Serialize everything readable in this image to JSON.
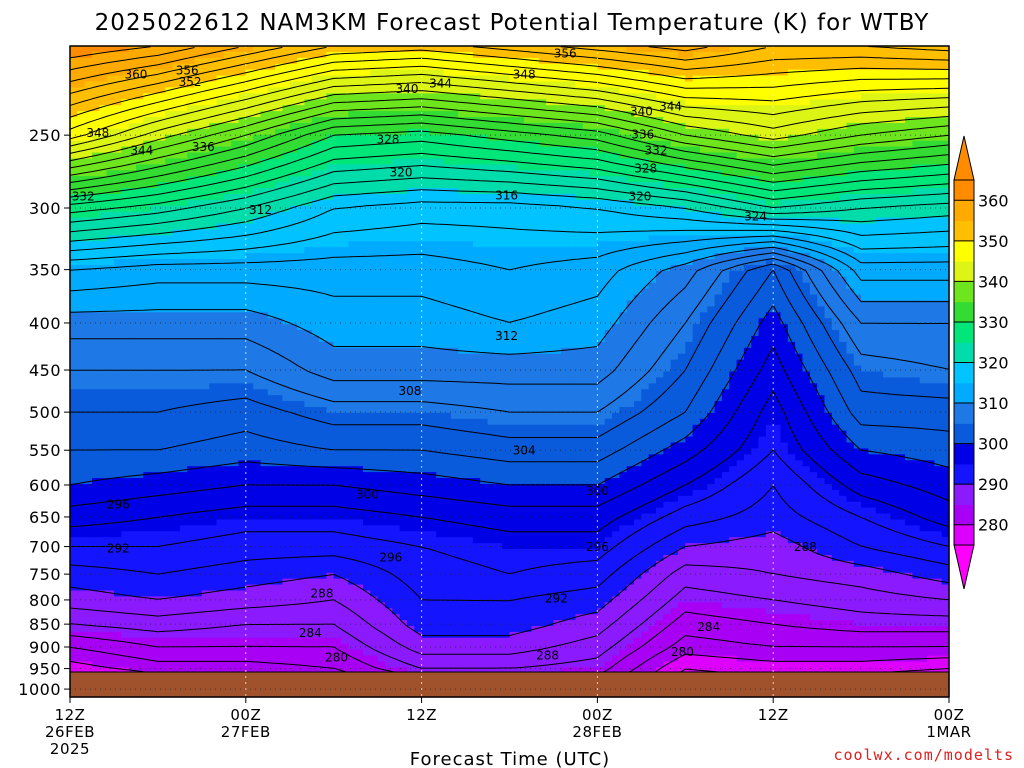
{
  "title": "2025022612 NAM3KM Forecast Potential Temperature (K) for WTBY",
  "credit": "coolwx.com/modelts",
  "chart_data": {
    "type": "contour",
    "title": "2025022612 NAM3KM Forecast Potential Temperature (K) for WTBY",
    "xlabel": "Forecast Time (UTC)",
    "ylabel": "",
    "x_range_hours": [
      0,
      60
    ],
    "y_range_hpa": [
      1000,
      200
    ],
    "y_ticks": [
      250,
      300,
      350,
      400,
      450,
      500,
      550,
      600,
      650,
      700,
      750,
      800,
      850,
      900,
      950,
      1000
    ],
    "x_ticks": [
      {
        "hour": 0,
        "l1": "12Z",
        "l2": "26FEB",
        "l3": "2025"
      },
      {
        "hour": 12,
        "l1": "00Z",
        "l2": "27FEB",
        "l3": ""
      },
      {
        "hour": 24,
        "l1": "12Z",
        "l2": "",
        "l3": ""
      },
      {
        "hour": 36,
        "l1": "00Z",
        "l2": "28FEB",
        "l3": ""
      },
      {
        "hour": 48,
        "l1": "12Z",
        "l2": "",
        "l3": ""
      },
      {
        "hour": 60,
        "l1": "00Z",
        "l2": "1MAR",
        "l3": ""
      }
    ],
    "colorbar": {
      "ticks": [
        280,
        290,
        300,
        310,
        320,
        330,
        340,
        350,
        360
      ],
      "bands": [
        {
          "lo": 270,
          "hi": 275,
          "color": "#ff00ff"
        },
        {
          "lo": 275,
          "hi": 280,
          "color": "#dd00ff"
        },
        {
          "lo": 280,
          "hi": 285,
          "color": "#a800f5"
        },
        {
          "lo": 285,
          "hi": 290,
          "color": "#8c1aff"
        },
        {
          "lo": 290,
          "hi": 295,
          "color": "#1414ff"
        },
        {
          "lo": 295,
          "hi": 300,
          "color": "#0000e6"
        },
        {
          "lo": 300,
          "hi": 305,
          "color": "#0a5adc"
        },
        {
          "lo": 305,
          "hi": 310,
          "color": "#1e78e6"
        },
        {
          "lo": 310,
          "hi": 315,
          "color": "#00aaff"
        },
        {
          "lo": 315,
          "hi": 320,
          "color": "#00c3ff"
        },
        {
          "lo": 320,
          "hi": 325,
          "color": "#00dcaa"
        },
        {
          "lo": 325,
          "hi": 330,
          "color": "#00e678"
        },
        {
          "lo": 330,
          "hi": 335,
          "color": "#32dc32"
        },
        {
          "lo": 335,
          "hi": 340,
          "color": "#6ee61e"
        },
        {
          "lo": 340,
          "hi": 345,
          "color": "#dcf514"
        },
        {
          "lo": 345,
          "hi": 350,
          "color": "#ffff00"
        },
        {
          "lo": 350,
          "hi": 355,
          "color": "#ffbe00"
        },
        {
          "lo": 355,
          "hi": 360,
          "color": "#ffaa00"
        },
        {
          "lo": 360,
          "hi": 370,
          "color": "#ff8c00"
        }
      ]
    },
    "ground_color": "#a0522d",
    "contour_interval_K": 2,
    "columns": [
      {
        "hour": 0,
        "theta": [
          [
            1000,
            274
          ],
          [
            950,
            279
          ],
          [
            900,
            282
          ],
          [
            850,
            286
          ],
          [
            800,
            289
          ],
          [
            750,
            291
          ],
          [
            700,
            294
          ],
          [
            650,
            297
          ],
          [
            600,
            300
          ],
          [
            550,
            302
          ],
          [
            500,
            304
          ],
          [
            450,
            306
          ],
          [
            400,
            309
          ],
          [
            350,
            314
          ],
          [
            300,
            327
          ],
          [
            250,
            347
          ],
          [
            200,
            362
          ]
        ]
      },
      {
        "hour": 6,
        "theta": [
          [
            1000,
            277
          ],
          [
            950,
            281
          ],
          [
            900,
            284
          ],
          [
            850,
            287
          ],
          [
            800,
            290
          ],
          [
            750,
            292
          ],
          [
            700,
            294
          ],
          [
            650,
            296
          ],
          [
            600,
            299
          ],
          [
            550,
            302
          ],
          [
            500,
            304
          ],
          [
            450,
            306
          ],
          [
            400,
            309
          ],
          [
            350,
            313
          ],
          [
            300,
            325
          ],
          [
            250,
            341
          ],
          [
            200,
            360
          ]
        ]
      },
      {
        "hour": 12,
        "theta": [
          [
            1000,
            277
          ],
          [
            950,
            281
          ],
          [
            900,
            284
          ],
          [
            850,
            286
          ],
          [
            800,
            289
          ],
          [
            750,
            291
          ],
          [
            700,
            293
          ],
          [
            650,
            295
          ],
          [
            600,
            298
          ],
          [
            550,
            301
          ],
          [
            500,
            303
          ],
          [
            450,
            306
          ],
          [
            400,
            309
          ],
          [
            350,
            313
          ],
          [
            300,
            322
          ],
          [
            250,
            336
          ],
          [
            200,
            356
          ]
        ]
      },
      {
        "hour": 18,
        "theta": [
          [
            1000,
            279
          ],
          [
            950,
            282
          ],
          [
            900,
            284
          ],
          [
            850,
            286
          ],
          [
            800,
            288
          ],
          [
            750,
            290
          ],
          [
            700,
            293
          ],
          [
            650,
            295
          ],
          [
            600,
            298
          ],
          [
            550,
            302
          ],
          [
            500,
            305
          ],
          [
            450,
            309
          ],
          [
            400,
            311
          ],
          [
            350,
            313
          ],
          [
            300,
            318
          ],
          [
            250,
            330
          ],
          [
            200,
            352
          ]
        ]
      },
      {
        "hour": 24,
        "theta": [
          [
            1000,
            281
          ],
          [
            950,
            286
          ],
          [
            900,
            289
          ],
          [
            850,
            291
          ],
          [
            800,
            292
          ],
          [
            750,
            293
          ],
          [
            700,
            294
          ],
          [
            650,
            296
          ],
          [
            600,
            299
          ],
          [
            550,
            302
          ],
          [
            500,
            305
          ],
          [
            450,
            309
          ],
          [
            400,
            311
          ],
          [
            350,
            313
          ],
          [
            300,
            317
          ],
          [
            250,
            329
          ],
          [
            200,
            351
          ]
        ]
      },
      {
        "hour": 30,
        "theta": [
          [
            1000,
            280
          ],
          [
            950,
            286
          ],
          [
            900,
            289
          ],
          [
            850,
            291
          ],
          [
            800,
            292
          ],
          [
            750,
            294
          ],
          [
            700,
            295
          ],
          [
            650,
            297
          ],
          [
            600,
            300
          ],
          [
            550,
            303
          ],
          [
            500,
            306
          ],
          [
            450,
            309
          ],
          [
            400,
            312
          ],
          [
            350,
            314
          ],
          [
            300,
            317
          ],
          [
            250,
            331
          ],
          [
            200,
            353
          ]
        ]
      },
      {
        "hour": 36,
        "theta": [
          [
            1000,
            282
          ],
          [
            950,
            285
          ],
          [
            900,
            287
          ],
          [
            850,
            289
          ],
          [
            800,
            291
          ],
          [
            750,
            293
          ],
          [
            700,
            295
          ],
          [
            650,
            297
          ],
          [
            600,
            300
          ],
          [
            550,
            303
          ],
          [
            500,
            306
          ],
          [
            450,
            309
          ],
          [
            400,
            311
          ],
          [
            350,
            313
          ],
          [
            300,
            318
          ],
          [
            250,
            333
          ],
          [
            200,
            355
          ]
        ]
      },
      {
        "hour": 42,
        "theta": [
          [
            1000,
            276
          ],
          [
            950,
            278
          ],
          [
            900,
            281
          ],
          [
            850,
            283
          ],
          [
            800,
            285
          ],
          [
            750,
            287
          ],
          [
            700,
            290
          ],
          [
            650,
            293
          ],
          [
            600,
            296
          ],
          [
            550,
            299
          ],
          [
            500,
            302
          ],
          [
            450,
            304
          ],
          [
            400,
            306
          ],
          [
            350,
            309
          ],
          [
            300,
            320
          ],
          [
            250,
            338
          ],
          [
            200,
            357
          ]
        ]
      },
      {
        "hour": 48,
        "theta": [
          [
            1000,
            276
          ],
          [
            950,
            279
          ],
          [
            900,
            282
          ],
          [
            850,
            284
          ],
          [
            800,
            286
          ],
          [
            750,
            288
          ],
          [
            700,
            289
          ],
          [
            650,
            291
          ],
          [
            600,
            292
          ],
          [
            550,
            294
          ],
          [
            500,
            295
          ],
          [
            450,
            297
          ],
          [
            400,
            299
          ],
          [
            350,
            302
          ],
          [
            300,
            324
          ],
          [
            250,
            341
          ],
          [
            200,
            354
          ]
        ]
      },
      {
        "hour": 54,
        "theta": [
          [
            1000,
            275
          ],
          [
            950,
            279
          ],
          [
            900,
            282
          ],
          [
            850,
            285
          ],
          [
            800,
            287
          ],
          [
            750,
            289
          ],
          [
            700,
            292
          ],
          [
            650,
            294
          ],
          [
            600,
            297
          ],
          [
            550,
            300
          ],
          [
            500,
            303
          ],
          [
            450,
            305
          ],
          [
            400,
            308
          ],
          [
            350,
            313
          ],
          [
            300,
            322
          ],
          [
            250,
            338
          ],
          [
            200,
            354
          ]
        ]
      },
      {
        "hour": 60,
        "theta": [
          [
            1000,
            274
          ],
          [
            950,
            278
          ],
          [
            900,
            282
          ],
          [
            850,
            285
          ],
          [
            800,
            288
          ],
          [
            750,
            291
          ],
          [
            700,
            294
          ],
          [
            650,
            297
          ],
          [
            600,
            299
          ],
          [
            550,
            301
          ],
          [
            500,
            303
          ],
          [
            450,
            306
          ],
          [
            400,
            308
          ],
          [
            350,
            313
          ],
          [
            300,
            321
          ],
          [
            250,
            336
          ],
          [
            200,
            355
          ]
        ]
      }
    ],
    "contour_labels": [
      {
        "text": "360",
        "hour": 4.5,
        "p": 215
      },
      {
        "text": "356",
        "hour": 8.0,
        "p": 213
      },
      {
        "text": "352",
        "hour": 8.2,
        "p": 219
      },
      {
        "text": "356",
        "hour": 33.8,
        "p": 204
      },
      {
        "text": "348",
        "hour": 31.0,
        "p": 215
      },
      {
        "text": "344",
        "hour": 25.3,
        "p": 220
      },
      {
        "text": "340",
        "hour": 23.0,
        "p": 223
      },
      {
        "text": "344",
        "hour": 41.0,
        "p": 233
      },
      {
        "text": "340",
        "hour": 39.0,
        "p": 236
      },
      {
        "text": "348",
        "hour": 1.9,
        "p": 249
      },
      {
        "text": "344",
        "hour": 4.9,
        "p": 260
      },
      {
        "text": "336",
        "hour": 9.1,
        "p": 258
      },
      {
        "text": "328",
        "hour": 21.7,
        "p": 253
      },
      {
        "text": "336",
        "hour": 39.1,
        "p": 250
      },
      {
        "text": "332",
        "hour": 40.0,
        "p": 260
      },
      {
        "text": "328",
        "hour": 39.3,
        "p": 272
      },
      {
        "text": "320",
        "hour": 22.6,
        "p": 275
      },
      {
        "text": "316",
        "hour": 29.8,
        "p": 291
      },
      {
        "text": "320",
        "hour": 38.9,
        "p": 292
      },
      {
        "text": "324",
        "hour": 46.8,
        "p": 307
      },
      {
        "text": "332",
        "hour": 0.9,
        "p": 292
      },
      {
        "text": "312",
        "hour": 13.0,
        "p": 302
      },
      {
        "text": "312",
        "hour": 29.8,
        "p": 414
      },
      {
        "text": "308",
        "hour": 23.2,
        "p": 475
      },
      {
        "text": "304",
        "hour": 31.0,
        "p": 551
      },
      {
        "text": "300",
        "hour": 20.3,
        "p": 615
      },
      {
        "text": "300",
        "hour": 36.0,
        "p": 610
      },
      {
        "text": "296",
        "hour": 3.3,
        "p": 631
      },
      {
        "text": "292",
        "hour": 3.3,
        "p": 704
      },
      {
        "text": "296",
        "hour": 21.9,
        "p": 720
      },
      {
        "text": "296",
        "hour": 36.0,
        "p": 702
      },
      {
        "text": "288",
        "hour": 50.2,
        "p": 702
      },
      {
        "text": "288",
        "hour": 17.2,
        "p": 788
      },
      {
        "text": "292",
        "hour": 33.2,
        "p": 798
      },
      {
        "text": "284",
        "hour": 16.4,
        "p": 870
      },
      {
        "text": "284",
        "hour": 43.6,
        "p": 857
      },
      {
        "text": "280",
        "hour": 18.2,
        "p": 925
      },
      {
        "text": "288",
        "hour": 32.6,
        "p": 921
      },
      {
        "text": "280",
        "hour": 41.8,
        "p": 913
      }
    ]
  }
}
